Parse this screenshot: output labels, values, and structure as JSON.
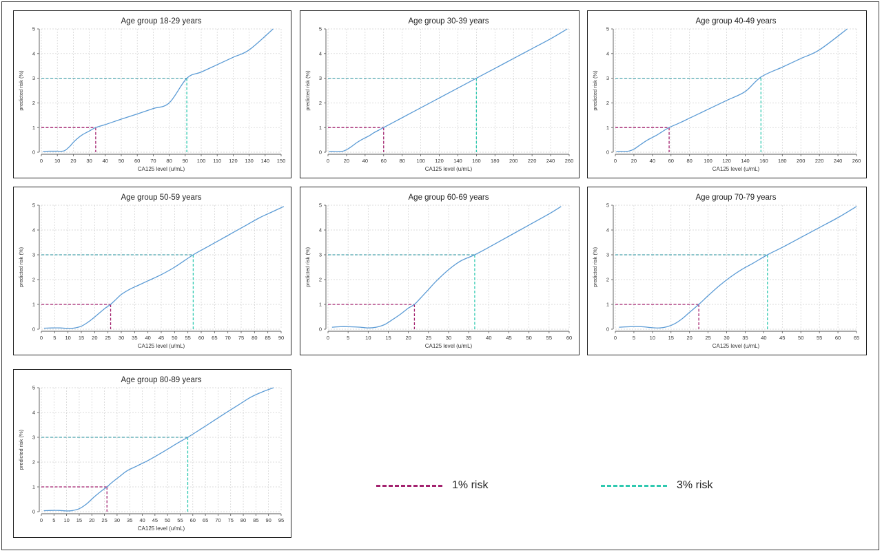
{
  "chart_data": [
    {
      "type": "line",
      "title": "Age group 18-29 years",
      "xlabel": "CA125 level (u/mL)",
      "ylabel": "predicted risk (%)",
      "xlim": [
        0,
        150
      ],
      "ylim": [
        0,
        5
      ],
      "xticks": [
        0,
        10,
        20,
        30,
        40,
        50,
        60,
        70,
        80,
        90,
        100,
        110,
        120,
        130,
        140,
        150
      ],
      "yticks": [
        0,
        1,
        2,
        3,
        4,
        5
      ],
      "grid": true,
      "series": [
        {
          "x": [
            1,
            5,
            10,
            13,
            15,
            18,
            20,
            23,
            26,
            30,
            34,
            40,
            50,
            60,
            70,
            80,
            91,
            100,
            110,
            120,
            130,
            145
          ],
          "y": [
            0.03,
            0.04,
            0.04,
            0.04,
            0.08,
            0.25,
            0.4,
            0.58,
            0.72,
            0.86,
            1.0,
            1.12,
            1.34,
            1.55,
            1.77,
            2.0,
            3.0,
            3.25,
            3.55,
            3.85,
            4.15,
            5.0
          ]
        }
      ],
      "thresholds": [
        {
          "x": 34,
          "y": 1
        },
        {
          "x": 91,
          "y": 3
        }
      ]
    },
    {
      "type": "line",
      "title": "Age group 30-39 years",
      "xlabel": "CA125 level (u/mL)",
      "ylabel": "predicted risk (%)",
      "xlim": [
        0,
        260
      ],
      "ylim": [
        0,
        5
      ],
      "xticks": [
        0,
        20,
        40,
        60,
        80,
        100,
        120,
        140,
        160,
        180,
        200,
        220,
        240,
        260
      ],
      "yticks": [
        0,
        1,
        2,
        3,
        4,
        5
      ],
      "grid": true,
      "series": [
        {
          "x": [
            1,
            5,
            10,
            15,
            20,
            25,
            30,
            35,
            40,
            45,
            50,
            55,
            60,
            80,
            100,
            120,
            140,
            160,
            180,
            200,
            220,
            240,
            258
          ],
          "y": [
            0.02,
            0.03,
            0.02,
            0.03,
            0.1,
            0.22,
            0.36,
            0.48,
            0.58,
            0.68,
            0.8,
            0.9,
            1.0,
            1.4,
            1.8,
            2.2,
            2.6,
            3.0,
            3.4,
            3.8,
            4.2,
            4.6,
            5.0
          ]
        }
      ],
      "thresholds": [
        {
          "x": 60,
          "y": 1
        },
        {
          "x": 160,
          "y": 3
        }
      ]
    },
    {
      "type": "line",
      "title": "Age group 40-49 years",
      "xlabel": "CA125 level (u/mL)",
      "ylabel": "predicted risk (%)",
      "xlim": [
        0,
        260
      ],
      "ylim": [
        0,
        5
      ],
      "xticks": [
        0,
        20,
        40,
        60,
        80,
        100,
        120,
        140,
        160,
        180,
        200,
        220,
        240,
        260
      ],
      "yticks": [
        0,
        1,
        2,
        3,
        4,
        5
      ],
      "grid": true,
      "series": [
        {
          "x": [
            1,
            5,
            10,
            15,
            20,
            25,
            30,
            35,
            40,
            45,
            50,
            58,
            70,
            80,
            100,
            120,
            140,
            157,
            180,
            200,
            220,
            250
          ],
          "y": [
            0.02,
            0.03,
            0.03,
            0.05,
            0.12,
            0.25,
            0.38,
            0.5,
            0.6,
            0.7,
            0.82,
            1.0,
            1.2,
            1.38,
            1.74,
            2.1,
            2.46,
            3.05,
            3.45,
            3.8,
            4.15,
            5.0
          ]
        }
      ],
      "thresholds": [
        {
          "x": 58,
          "y": 1
        },
        {
          "x": 157,
          "y": 3
        }
      ]
    },
    {
      "type": "line",
      "title": "Age group 50-59 years",
      "xlabel": "CA125 level (u/mL)",
      "ylabel": "predicted risk (%)",
      "xlim": [
        0,
        90
      ],
      "ylim": [
        0,
        5
      ],
      "xticks": [
        0,
        5,
        10,
        15,
        20,
        25,
        30,
        35,
        40,
        45,
        50,
        55,
        60,
        65,
        70,
        75,
        80,
        85,
        90
      ],
      "yticks": [
        0,
        1,
        2,
        3,
        4,
        5
      ],
      "grid": true,
      "series": [
        {
          "x": [
            1,
            4,
            7,
            10,
            12,
            15,
            18,
            21,
            24,
            26,
            28,
            30,
            33,
            36,
            40,
            45,
            50,
            57,
            62,
            67,
            72,
            77,
            82,
            87,
            91
          ],
          "y": [
            0.04,
            0.05,
            0.05,
            0.03,
            0.04,
            0.12,
            0.32,
            0.58,
            0.85,
            1.0,
            1.2,
            1.4,
            1.6,
            1.75,
            1.95,
            2.2,
            2.5,
            3.0,
            3.3,
            3.6,
            3.9,
            4.2,
            4.5,
            4.75,
            4.95
          ]
        }
      ],
      "thresholds": [
        {
          "x": 26,
          "y": 1
        },
        {
          "x": 57,
          "y": 3
        }
      ]
    },
    {
      "type": "line",
      "title": "Age group 60-69 years",
      "xlabel": "CA125 level (u/mL)",
      "ylabel": "predicted risk (%)",
      "xlim": [
        0,
        60
      ],
      "ylim": [
        0,
        5
      ],
      "xticks": [
        0,
        5,
        10,
        15,
        20,
        25,
        30,
        35,
        40,
        45,
        50,
        55,
        60
      ],
      "yticks": [
        0,
        1,
        2,
        3,
        4,
        5
      ],
      "grid": true,
      "series": [
        {
          "x": [
            1,
            3,
            5,
            8,
            10,
            12,
            14,
            16,
            18,
            20,
            21.5,
            23,
            25,
            27,
            30,
            33,
            36.5,
            40,
            45,
            50,
            55,
            58
          ],
          "y": [
            0.08,
            0.1,
            0.1,
            0.08,
            0.05,
            0.08,
            0.18,
            0.38,
            0.6,
            0.85,
            1.0,
            1.25,
            1.6,
            1.95,
            2.4,
            2.75,
            3.0,
            3.3,
            3.75,
            4.2,
            4.65,
            4.95
          ]
        }
      ],
      "thresholds": [
        {
          "x": 21.5,
          "y": 1
        },
        {
          "x": 36.5,
          "y": 3
        }
      ]
    },
    {
      "type": "line",
      "title": "Age group 70-79 years",
      "xlabel": "CA125 level (u/mL)",
      "ylabel": "predicted risk (%)",
      "xlim": [
        0,
        65
      ],
      "ylim": [
        0,
        5
      ],
      "xticks": [
        0,
        5,
        10,
        15,
        20,
        25,
        30,
        35,
        40,
        45,
        50,
        55,
        60,
        65
      ],
      "yticks": [
        0,
        1,
        2,
        3,
        4,
        5
      ],
      "grid": true,
      "series": [
        {
          "x": [
            1,
            4,
            7,
            10,
            12,
            14,
            16,
            18,
            20,
            22.5,
            25,
            28,
            31,
            34,
            37,
            41,
            45,
            50,
            55,
            60,
            65
          ],
          "y": [
            0.08,
            0.1,
            0.1,
            0.06,
            0.05,
            0.1,
            0.22,
            0.42,
            0.68,
            1.0,
            1.35,
            1.75,
            2.1,
            2.4,
            2.65,
            3.0,
            3.3,
            3.7,
            4.1,
            4.5,
            4.95
          ]
        }
      ],
      "thresholds": [
        {
          "x": 22.5,
          "y": 1
        },
        {
          "x": 41,
          "y": 3
        }
      ]
    },
    {
      "type": "line",
      "title": "Age group 80-89 years",
      "xlabel": "CA125 level (u/mL)",
      "ylabel": "predicted risk (%)",
      "xlim": [
        0,
        95
      ],
      "ylim": [
        0,
        5
      ],
      "xticks": [
        0,
        5,
        10,
        15,
        20,
        25,
        30,
        35,
        40,
        45,
        50,
        55,
        60,
        65,
        70,
        75,
        80,
        85,
        90,
        95
      ],
      "yticks": [
        0,
        1,
        2,
        3,
        4,
        5
      ],
      "grid": true,
      "series": [
        {
          "x": [
            1,
            4,
            7,
            10,
            12,
            15,
            18,
            21,
            24,
            26,
            28,
            31,
            34,
            38,
            42,
            46,
            50,
            54,
            58,
            63,
            68,
            73,
            78,
            83,
            88,
            92
          ],
          "y": [
            0.04,
            0.05,
            0.05,
            0.03,
            0.04,
            0.12,
            0.32,
            0.6,
            0.85,
            1.0,
            1.18,
            1.42,
            1.65,
            1.85,
            2.05,
            2.28,
            2.52,
            2.77,
            3.0,
            3.32,
            3.65,
            3.98,
            4.3,
            4.62,
            4.85,
            5.0
          ]
        }
      ],
      "thresholds": [
        {
          "x": 26,
          "y": 1
        },
        {
          "x": 58,
          "y": 3
        }
      ]
    }
  ],
  "legend": {
    "items": [
      {
        "label": "1% risk",
        "color": "#a3226f"
      },
      {
        "label": "3% risk",
        "color": "#2fc9b0"
      }
    ]
  },
  "colors": {
    "curve": "#5b9bd5",
    "risk1": "#a3226f",
    "risk3": "#2fc9b0",
    "risk3_horizontal": "#4aa3ad"
  }
}
